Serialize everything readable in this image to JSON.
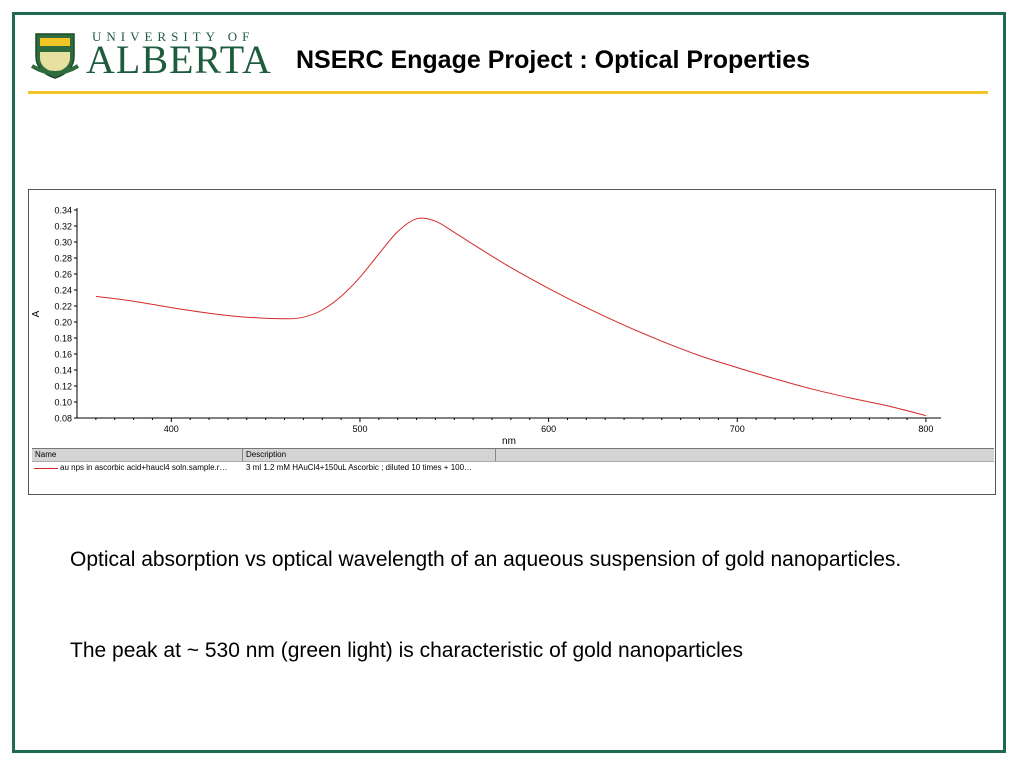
{
  "logo": {
    "top_text": "UNIVERSITY OF",
    "main_text": "ALBERTA"
  },
  "header": {
    "title": "NSERC Engage Project : Optical Properties"
  },
  "colors": {
    "frame": "#1e6b4f",
    "rule": "#f2c527",
    "series": "#d42a2a"
  },
  "chart_data": {
    "type": "line",
    "xlabel": "nm",
    "ylabel": "A",
    "xlim": [
      350,
      808
    ],
    "ylim": [
      0.08,
      0.34
    ],
    "x_ticks": [
      400,
      500,
      600,
      700,
      800
    ],
    "y_ticks": [
      0.08,
      0.1,
      0.12,
      0.14,
      0.16,
      0.18,
      0.2,
      0.22,
      0.24,
      0.26,
      0.28,
      0.3,
      0.32,
      0.34
    ],
    "series": [
      {
        "name": "au nps in ascorbic acid+haucl4 soln.sample.r…",
        "description": "3 ml 1.2 mM HAuCl4+150uL Ascorbic ; diluted 10 times + 100…",
        "x": [
          360,
          380,
          400,
          420,
          440,
          460,
          470,
          480,
          490,
          500,
          510,
          520,
          530,
          540,
          550,
          560,
          580,
          600,
          620,
          640,
          660,
          680,
          700,
          720,
          740,
          760,
          780,
          800
        ],
        "y": [
          0.232,
          0.226,
          0.218,
          0.211,
          0.206,
          0.204,
          0.206,
          0.215,
          0.232,
          0.256,
          0.285,
          0.313,
          0.329,
          0.326,
          0.312,
          0.297,
          0.268,
          0.242,
          0.218,
          0.196,
          0.176,
          0.158,
          0.143,
          0.129,
          0.116,
          0.105,
          0.095,
          0.083
        ]
      }
    ],
    "legend": {
      "name_header": "Name",
      "description_header": "Description"
    }
  },
  "captions": {
    "line1": "Optical absorption vs optical wavelength of an aqueous suspension of gold nanoparticles.",
    "line2": "The peak at ~ 530 nm (green light) is characteristic of gold nanoparticles"
  }
}
